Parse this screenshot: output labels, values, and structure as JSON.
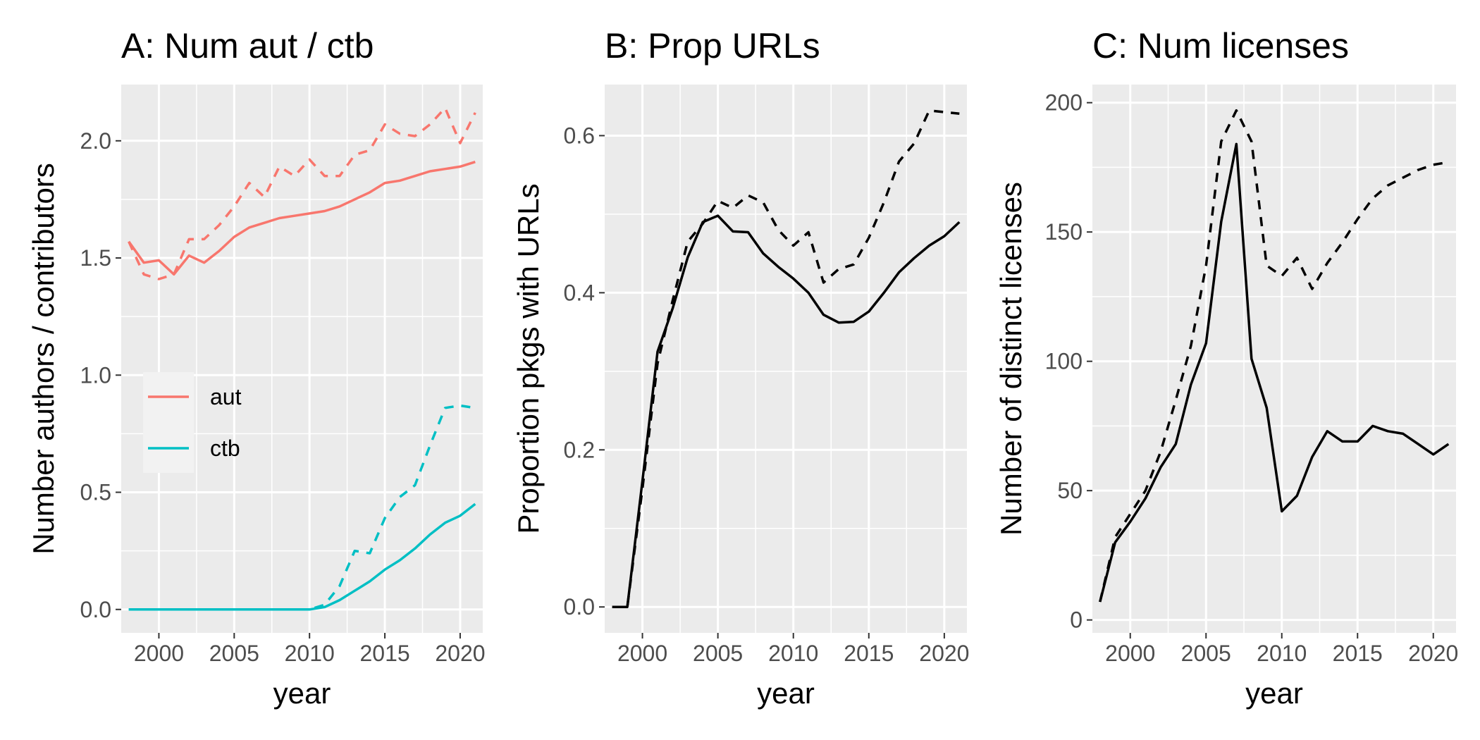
{
  "chart_data": [
    {
      "type": "line",
      "title": "A: Num aut / ctb",
      "xlabel": "year",
      "ylabel": "Number authors / contributors",
      "xlim": [
        1997.5,
        2021.5
      ],
      "ylim": [
        -0.1,
        2.24
      ],
      "x_ticks": [
        2000,
        2005,
        2010,
        2015,
        2020
      ],
      "x_tick_labels": [
        "2000",
        "2005",
        "2010",
        "2015",
        "2020"
      ],
      "y_ticks": [
        0,
        0.5,
        1,
        1.5,
        2
      ],
      "y_tick_labels": [
        "0.0",
        "0.5",
        "1.0",
        "1.5",
        "2.0"
      ],
      "grid": true,
      "legend": {
        "placement": "left",
        "entries": [
          {
            "label": "aut",
            "color": "#F8766D"
          },
          {
            "label": "ctb",
            "color": "#00BFC4"
          }
        ]
      },
      "series": [
        {
          "name": "aut",
          "color": "#F8766D",
          "linestyle": "solid",
          "x": [
            1998,
            1999,
            2000,
            2001,
            2002,
            2003,
            2004,
            2005,
            2006,
            2007,
            2008,
            2009,
            2010,
            2011,
            2012,
            2013,
            2014,
            2015,
            2016,
            2017,
            2018,
            2019,
            2020,
            2021
          ],
          "values": [
            1.57,
            1.48,
            1.49,
            1.43,
            1.51,
            1.48,
            1.53,
            1.59,
            1.63,
            1.65,
            1.67,
            1.68,
            1.69,
            1.7,
            1.72,
            1.75,
            1.78,
            1.82,
            1.83,
            1.85,
            1.87,
            1.88,
            1.89,
            1.91
          ]
        },
        {
          "name": "aut",
          "color": "#F8766D",
          "linestyle": "dashed",
          "x": [
            1998,
            1999,
            2000,
            2001,
            2002,
            2003,
            2004,
            2005,
            2006,
            2007,
            2008,
            2009,
            2010,
            2011,
            2012,
            2013,
            2014,
            2015,
            2016,
            2017,
            2018,
            2019,
            2020,
            2021
          ],
          "values": [
            1.57,
            1.43,
            1.41,
            1.43,
            1.58,
            1.58,
            1.64,
            1.72,
            1.82,
            1.76,
            1.89,
            1.85,
            1.92,
            1.85,
            1.85,
            1.94,
            1.96,
            2.07,
            2.03,
            2.02,
            2.07,
            2.14,
            1.99,
            2.12
          ]
        },
        {
          "name": "ctb",
          "color": "#00BFC4",
          "linestyle": "solid",
          "x": [
            1998,
            1999,
            2000,
            2001,
            2002,
            2003,
            2004,
            2005,
            2006,
            2007,
            2008,
            2009,
            2010,
            2011,
            2012,
            2013,
            2014,
            2015,
            2016,
            2017,
            2018,
            2019,
            2020,
            2021
          ],
          "values": [
            0,
            0,
            0,
            0,
            0,
            0,
            0,
            0,
            0,
            0,
            0,
            0,
            0,
            0.01,
            0.04,
            0.08,
            0.12,
            0.17,
            0.21,
            0.26,
            0.32,
            0.37,
            0.4,
            0.45
          ]
        },
        {
          "name": "ctb",
          "color": "#00BFC4",
          "linestyle": "dashed",
          "x": [
            1998,
            1999,
            2000,
            2001,
            2002,
            2003,
            2004,
            2005,
            2006,
            2007,
            2008,
            2009,
            2010,
            2011,
            2012,
            2013,
            2014,
            2015,
            2016,
            2017,
            2018,
            2019,
            2020,
            2021
          ],
          "values": [
            0,
            0,
            0,
            0,
            0,
            0,
            0,
            0,
            0,
            0,
            0,
            0,
            0,
            0.02,
            0.1,
            0.25,
            0.24,
            0.39,
            0.48,
            0.53,
            0.7,
            0.86,
            0.87,
            0.86
          ]
        }
      ]
    },
    {
      "type": "line",
      "title": "B: Prop URLs",
      "xlabel": "year",
      "ylabel": "Proportion pkgs with URLs",
      "xlim": [
        1997.5,
        2021.5
      ],
      "ylim": [
        -0.033,
        0.665
      ],
      "x_ticks": [
        2000,
        2005,
        2010,
        2015,
        2020
      ],
      "x_tick_labels": [
        "2000",
        "2005",
        "2010",
        "2015",
        "2020"
      ],
      "y_ticks": [
        0,
        0.2,
        0.4,
        0.6
      ],
      "y_tick_labels": [
        "0.0",
        "0.2",
        "0.4",
        "0.6"
      ],
      "grid": true,
      "series": [
        {
          "color": "#000000",
          "linestyle": "solid",
          "x": [
            1998,
            1999,
            2000,
            2001,
            2002,
            2003,
            2004,
            2005,
            2006,
            2007,
            2008,
            2009,
            2010,
            2011,
            2012,
            2013,
            2014,
            2015,
            2016,
            2017,
            2018,
            2019,
            2020,
            2021
          ],
          "values": [
            0,
            0,
            0.16,
            0.325,
            0.38,
            0.445,
            0.49,
            0.498,
            0.478,
            0.477,
            0.45,
            0.433,
            0.418,
            0.4,
            0.372,
            0.362,
            0.363,
            0.376,
            0.4,
            0.426,
            0.444,
            0.46,
            0.472,
            0.49
          ]
        },
        {
          "color": "#000000",
          "linestyle": "dashed",
          "x": [
            1998,
            1999,
            2000,
            2001,
            2002,
            2003,
            2004,
            2005,
            2006,
            2007,
            2008,
            2009,
            2010,
            2011,
            2012,
            2013,
            2014,
            2015,
            2016,
            2017,
            2018,
            2019,
            2020,
            2021
          ],
          "values": [
            0,
            0,
            0.15,
            0.31,
            0.39,
            0.465,
            0.488,
            0.517,
            0.508,
            0.524,
            0.515,
            0.48,
            0.46,
            0.477,
            0.413,
            0.43,
            0.436,
            0.47,
            0.515,
            0.567,
            0.59,
            0.632,
            0.63,
            0.628
          ]
        }
      ]
    },
    {
      "type": "line",
      "title": "C: Num licenses",
      "xlabel": "year",
      "ylabel": "Number of distinct licenses",
      "xlim": [
        1997.5,
        2021.5
      ],
      "ylim": [
        -5,
        207
      ],
      "x_ticks": [
        2000,
        2005,
        2010,
        2015,
        2020
      ],
      "x_tick_labels": [
        "2000",
        "2005",
        "2010",
        "2015",
        "2020"
      ],
      "y_ticks": [
        0,
        50,
        100,
        150,
        200
      ],
      "y_tick_labels": [
        "0",
        "50",
        "100",
        "150",
        "200"
      ],
      "grid": true,
      "series": [
        {
          "color": "#000000",
          "linestyle": "solid",
          "x": [
            1998,
            1999,
            2000,
            2001,
            2002,
            2003,
            2004,
            2005,
            2006,
            2007,
            2008,
            2009,
            2010,
            2011,
            2012,
            2013,
            2014,
            2015,
            2016,
            2017,
            2018,
            2019,
            2020,
            2021
          ],
          "values": [
            7,
            30,
            38,
            47,
            59,
            68,
            91,
            107,
            154,
            184,
            101,
            82,
            42,
            48,
            63,
            73,
            69,
            69,
            75,
            73,
            72,
            68,
            64,
            68
          ]
        },
        {
          "color": "#000000",
          "linestyle": "dashed",
          "x": [
            1998,
            1999,
            2000,
            2001,
            2002,
            2003,
            2004,
            2005,
            2006,
            2007,
            2008,
            2009,
            2010,
            2011,
            2012,
            2013,
            2014,
            2015,
            2016,
            2017,
            2018,
            2019,
            2020,
            2021
          ],
          "values": [
            7,
            32,
            41,
            50,
            65,
            85,
            106,
            137,
            185,
            197,
            185,
            137,
            133,
            140,
            128,
            138,
            146,
            155,
            163,
            168,
            171,
            174,
            176,
            177
          ]
        }
      ]
    }
  ]
}
